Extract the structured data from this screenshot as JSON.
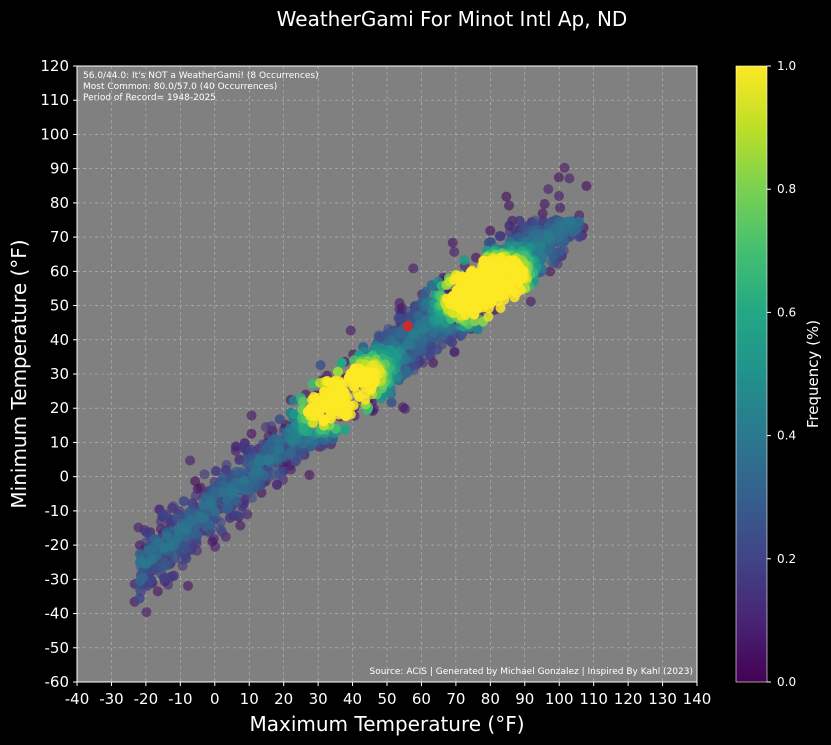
{
  "chart_data": {
    "type": "scatter",
    "title": "WeatherGami For Minot Intl Ap, ND",
    "xlabel": "Maximum Temperature (°F)",
    "ylabel": "Minimum Temperature (°F)",
    "xlim": [
      -40,
      140
    ],
    "ylim": [
      -60,
      120
    ],
    "xticks": [
      -40,
      -30,
      -20,
      -10,
      0,
      10,
      20,
      30,
      40,
      50,
      60,
      70,
      80,
      90,
      100,
      110,
      120,
      130,
      140
    ],
    "yticks": [
      -60,
      -50,
      -40,
      -30,
      -20,
      -10,
      0,
      10,
      20,
      30,
      40,
      50,
      60,
      70,
      80,
      90,
      100,
      110,
      120
    ],
    "grid": true,
    "annotations": [
      "56.0/44.0: It's NOT a WeatherGami! (8 Occurrences)",
      "Most Common: 80.0/57.0 (40 Occurrences)",
      "Period of Record= 1948-2025"
    ],
    "source": "Source: ACIS | Generated by Michael Gonzalez | Inspired By Kahl (2023)",
    "highlight_point": {
      "x": 56,
      "y": 44,
      "occurrences": 8,
      "color": "#d62728"
    },
    "most_common": {
      "x": 80,
      "y": 57,
      "occurrences": 40
    },
    "colorbar": {
      "label": "Frequency (%)",
      "range": [
        0,
        1.0
      ],
      "ticks": [
        "0.0",
        "0.2",
        "0.4",
        "0.6",
        "0.8",
        "1.0"
      ],
      "colormap": "viridis"
    },
    "distribution": {
      "description": "points cluster along Tmin ≈ 0.85*Tmax - 8 with spread; density peaks near (80,57) and (35,22)",
      "hotspots": [
        {
          "x": 80,
          "y": 57,
          "f": 1.0
        },
        {
          "x": 75,
          "y": 54,
          "f": 0.95
        },
        {
          "x": 77,
          "y": 51,
          "f": 0.9
        },
        {
          "x": 84,
          "y": 58,
          "f": 0.85
        },
        {
          "x": 44,
          "y": 30,
          "f": 0.75
        },
        {
          "x": 35,
          "y": 20,
          "f": 0.8
        },
        {
          "x": 37,
          "y": 24,
          "f": 0.6
        },
        {
          "x": 32,
          "y": 22,
          "f": 0.55
        }
      ]
    }
  },
  "colors": {
    "background": "#000000",
    "plot_background": "#808080",
    "text": "#ffffff"
  }
}
